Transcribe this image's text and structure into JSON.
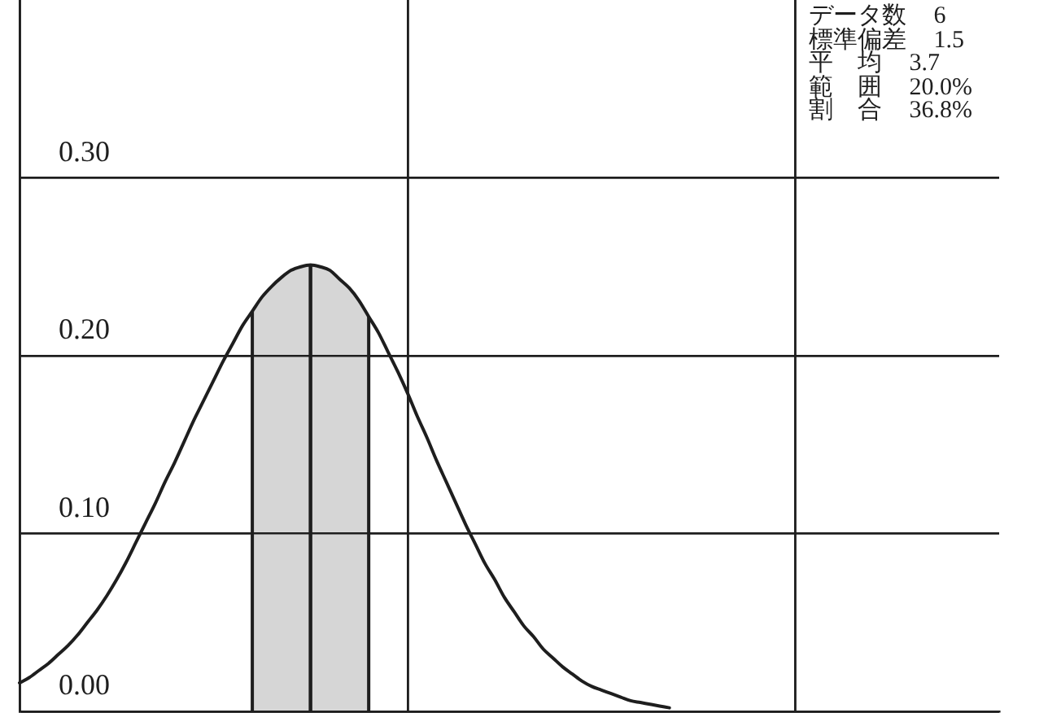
{
  "chart_data": {
    "type": "line",
    "categories": [
      null,
      null,
      null,
      null,
      null,
      null,
      null,
      null,
      null,
      null,
      null,
      null,
      null,
      null,
      null,
      null,
      null,
      null,
      null,
      null,
      null,
      null,
      null,
      null,
      null,
      null,
      null,
      null,
      null,
      null,
      null,
      null,
      null,
      null,
      null,
      null,
      null,
      null,
      null,
      null,
      null,
      null,
      null,
      null,
      null,
      null,
      null,
      null,
      null,
      null,
      null,
      null,
      null,
      null,
      null,
      null,
      null,
      null,
      null,
      null,
      null,
      null,
      null,
      null,
      null,
      null,
      null,
      null,
      null,
      null,
      null,
      null,
      null,
      null,
      null,
      null,
      null,
      null,
      null,
      null,
      null,
      null,
      null,
      null,
      null,
      null,
      null,
      null,
      null,
      null,
      null,
      null,
      null,
      null,
      null,
      null,
      null,
      null,
      null,
      null,
      null,
      null
    ],
    "series": [
      {
        "type": "line",
        "color": "#1e1e1e",
        "values": [
          0.016,
          0.019,
          0.023,
          0.027,
          0.032,
          0.037,
          0.043,
          0.05,
          0.057,
          0.065,
          0.074,
          0.084,
          0.095,
          0.106,
          0.117,
          0.129,
          0.14,
          0.152,
          0.164,
          0.175,
          0.186,
          0.197,
          0.207,
          0.217,
          0.225,
          0.233,
          0.239,
          0.244,
          0.248,
          0.25,
          0.251,
          0.25,
          0.248,
          0.243,
          0.238,
          0.231,
          0.222,
          0.213,
          0.202,
          0.191,
          0.179,
          0.166,
          0.154,
          0.141,
          0.129,
          0.117,
          0.105,
          0.094,
          0.083,
          0.074,
          0.064,
          0.056,
          0.048,
          0.042,
          0.035,
          0.03,
          0.025,
          0.021,
          0.017,
          0.014,
          0.012,
          0.01,
          0.008,
          0.006,
          0.005,
          0.004,
          0.003,
          0.002,
          null,
          null,
          null,
          null,
          null,
          null,
          null,
          null,
          null,
          null,
          null,
          null,
          null,
          null,
          null,
          null,
          null,
          null,
          null,
          null,
          null,
          null,
          null,
          null,
          null,
          null,
          null,
          null,
          null,
          null,
          null,
          null,
          null,
          null
        ]
      },
      {
        "type": "area",
        "color": "#d6d6d6",
        "values": [
          null,
          null,
          null,
          null,
          null,
          null,
          null,
          null,
          null,
          null,
          null,
          null,
          null,
          null,
          null,
          null,
          null,
          null,
          null,
          null,
          null,
          null,
          null,
          null,
          0.225,
          0.233,
          0.239,
          0.244,
          0.248,
          0.25,
          0.251,
          null,
          null,
          null,
          null,
          null,
          null,
          null,
          null,
          null,
          null,
          null,
          null,
          null,
          null,
          null,
          null,
          null,
          null,
          null,
          null,
          null,
          null,
          null,
          null,
          null,
          null,
          null,
          null,
          null,
          null,
          null,
          null,
          null,
          null,
          null,
          null,
          null,
          null,
          null,
          null,
          null,
          null,
          null,
          null,
          null,
          null,
          null,
          null,
          null,
          null,
          null,
          null,
          null,
          null,
          null,
          null,
          null,
          null,
          null,
          null,
          null,
          null,
          null,
          null,
          null,
          null,
          null,
          null,
          null,
          null,
          null
        ]
      },
      {
        "type": "area",
        "color": "#d6d6d6",
        "values": [
          null,
          null,
          null,
          null,
          null,
          null,
          null,
          null,
          null,
          null,
          null,
          null,
          null,
          null,
          null,
          null,
          null,
          null,
          null,
          null,
          null,
          null,
          null,
          null,
          null,
          null,
          null,
          null,
          null,
          null,
          0.251,
          0.25,
          0.248,
          0.243,
          0.238,
          0.231,
          0.222,
          null,
          null,
          null,
          null,
          null,
          null,
          null,
          null,
          null,
          null,
          null,
          null,
          null,
          null,
          null,
          null,
          null,
          null,
          null,
          null,
          null,
          null,
          null,
          null,
          null,
          null,
          null,
          null,
          null,
          null,
          null,
          null,
          null,
          null,
          null,
          null,
          null,
          null,
          null,
          null,
          null,
          null,
          null,
          null,
          null,
          null,
          null,
          null,
          null,
          null,
          null,
          null,
          null,
          null,
          null,
          null,
          null,
          null,
          null,
          null,
          null,
          null,
          null,
          null,
          null
        ]
      }
    ],
    "ylim": [
      0,
      0.4
    ],
    "yticks": [
      {
        "value": 0,
        "label": "0.00"
      },
      {
        "value": 0.1,
        "label": "0.10"
      },
      {
        "value": 0.2,
        "label": "0.20"
      },
      {
        "value": 0.3,
        "label": "0.30"
      }
    ],
    "grid": true,
    "tick_labels": "y",
    "marker": "none",
    "annotations": [
      "データ数 6",
      "標準偏差 1.5",
      "平　均 3.7",
      "範　囲 20.0%",
      "割　合 36.8%"
    ]
  }
}
